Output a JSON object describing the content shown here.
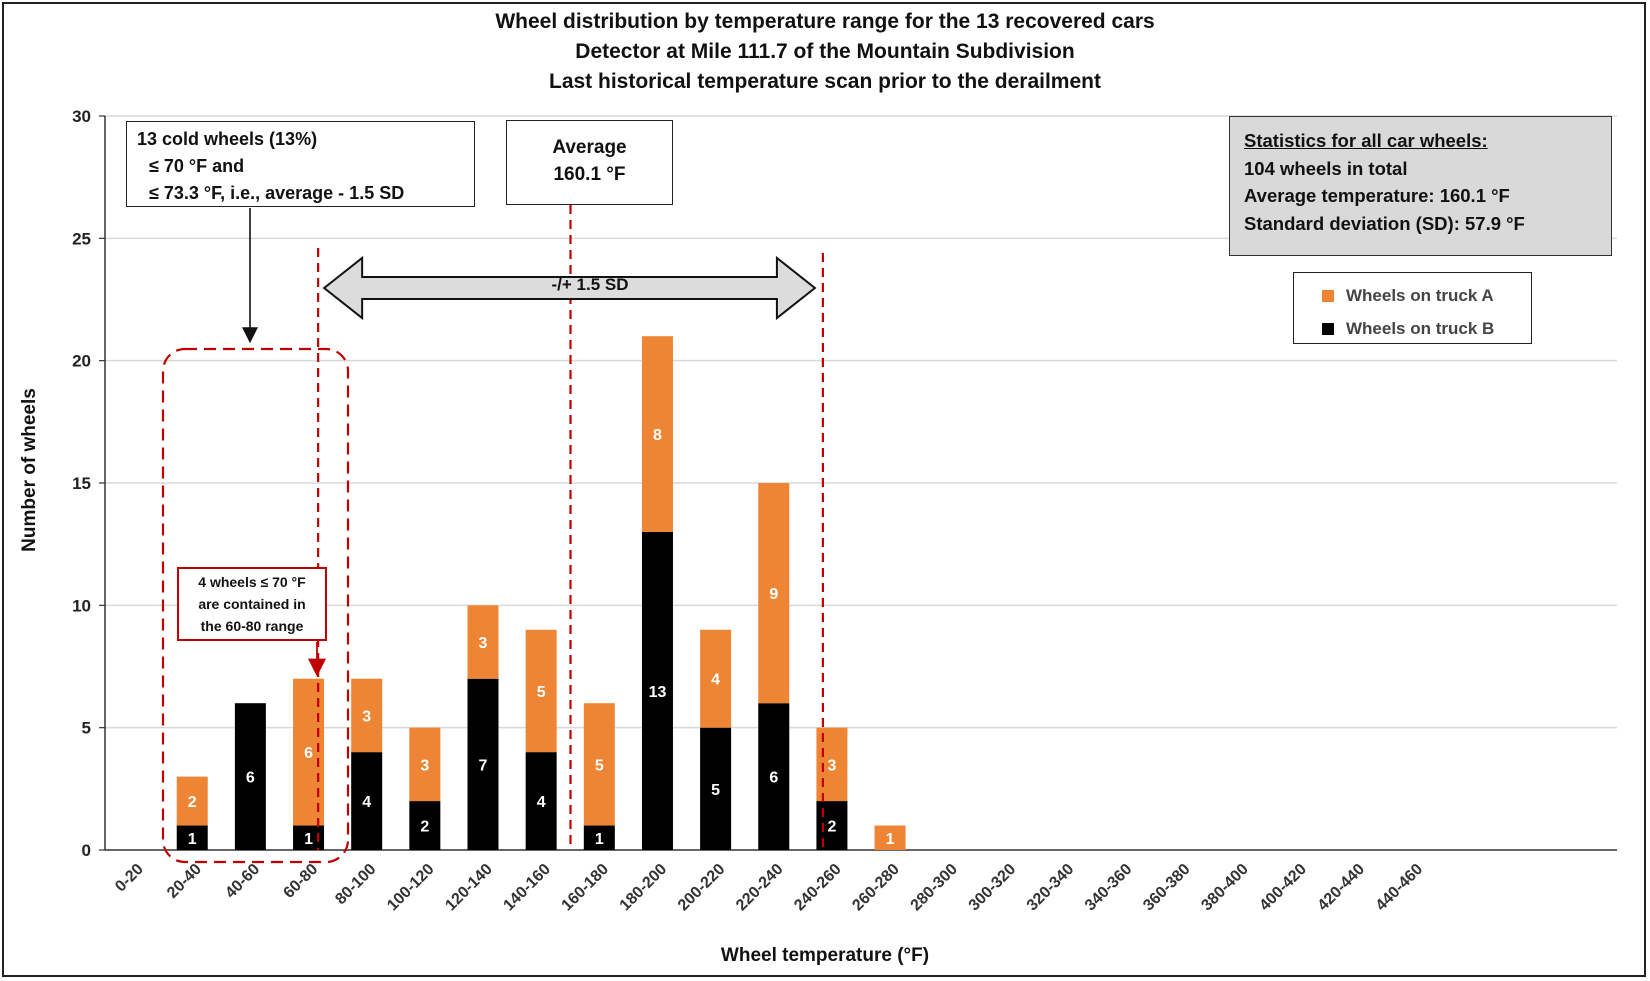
{
  "title_lines": [
    "Wheel distribution by temperature range for the 13 recovered cars",
    "Detector at Mile 111.7 of the Mountain Subdivision",
    "Last historical temperature scan prior to the derailment"
  ],
  "annotations": {
    "cold_box": [
      "13 cold wheels (13%)",
      "≤ 70 °F and",
      "≤ 73.3 °F, i.e., average - 1.5 SD"
    ],
    "average_box": [
      "Average",
      "160.1 °F"
    ],
    "stats_box": {
      "title": "Statistics for all car wheels:",
      "lines": [
        "104 wheels in total",
        "Average temperature: 160.1 °F",
        "Standard deviation (SD): 57.9 °F"
      ]
    },
    "note_box": [
      "4 wheels ≤ 70 °F",
      "are contained in",
      "the 60-80 range"
    ],
    "sd_arrow_label": "-/+ 1.5 SD"
  },
  "colors": {
    "truck_a": "#ed8535",
    "truck_b": "#000000",
    "marker_lines": "#c00000",
    "gridline": "#d9d9d9",
    "stats_fill": "#d9d9d9"
  },
  "chart_data": {
    "type": "bar",
    "stacked": true,
    "xlabel": "Wheel temperature (°F)",
    "ylabel": "Number of wheels",
    "ylim": [
      0,
      30
    ],
    "yticks": [
      0,
      5,
      10,
      15,
      20,
      25,
      30
    ],
    "grid": "horizontal",
    "legend_position": "top-right",
    "categories": [
      "0-20",
      "20-40",
      "40-60",
      "60-80",
      "80-100",
      "100-120",
      "120-140",
      "140-160",
      "160-180",
      "180-200",
      "200-220",
      "220-240",
      "240-260",
      "260-280",
      "280-300",
      "300-320",
      "320-340",
      "340-360",
      "360-380",
      "380-400",
      "400-420",
      "420-440",
      "440-460"
    ],
    "series": [
      {
        "name": "Wheels on truck B",
        "values": [
          0,
          1,
          6,
          1,
          4,
          2,
          7,
          4,
          1,
          13,
          5,
          6,
          2,
          0,
          0,
          0,
          0,
          0,
          0,
          0,
          0,
          0,
          0
        ]
      },
      {
        "name": "Wheels on truck A",
        "values": [
          0,
          2,
          0,
          6,
          3,
          3,
          3,
          5,
          5,
          8,
          4,
          9,
          3,
          1,
          0,
          0,
          0,
          0,
          0,
          0,
          0,
          0,
          0
        ]
      }
    ],
    "legend_order": [
      "Wheels on truck A",
      "Wheels on truck B"
    ],
    "reference_lines": {
      "average": 160.1,
      "minus_1_5_sd": 73.3,
      "plus_1_5_sd": 246.9
    }
  }
}
